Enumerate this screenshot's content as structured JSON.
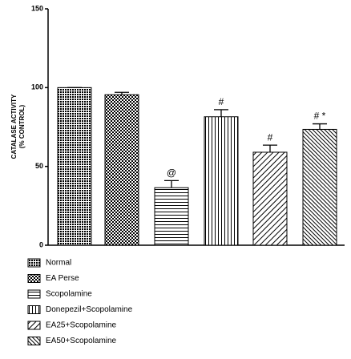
{
  "chart_data": {
    "type": "bar",
    "y_label": [
      "CATALASE ACTIVITY",
      "(% CONTROL)"
    ],
    "categories": [
      "Normal",
      "EA Perse",
      "Scopolamine",
      "Donepezil+Scopolamine",
      "EA25+Scopolamine",
      "EA50+Scopolamine"
    ],
    "values": [
      100,
      95.5,
      36.5,
      81.5,
      59,
      73.5
    ],
    "errors": [
      0,
      1.5,
      4.5,
      4.5,
      4.5,
      3.5
    ],
    "annotations": [
      null,
      null,
      "@",
      "#",
      "#",
      "# *"
    ],
    "patterns": [
      "dense-check",
      "check",
      "horizontal",
      "vertical",
      "diagonal",
      "diagonal-reverse"
    ],
    "color": "#000000",
    "ylim": [
      0,
      150
    ],
    "yticks": [
      0,
      50,
      100,
      150
    ]
  }
}
